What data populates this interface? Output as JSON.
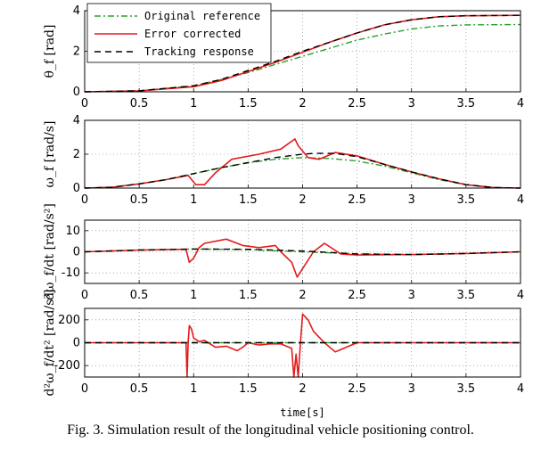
{
  "chart_data": [
    {
      "type": "line",
      "ylabel": "θ_f [rad]",
      "xlim": [
        0,
        4
      ],
      "ylim": [
        0,
        4
      ],
      "x_ticks": [
        "0",
        "0.5",
        "1",
        "1.5",
        "2",
        "2.5",
        "3",
        "3.5",
        "4"
      ],
      "y_ticks": [
        "0",
        "2",
        "4"
      ],
      "grid": true,
      "legend": {
        "position": "top-left",
        "entries": [
          "Original reference",
          "Error corrected",
          "Tracking response"
        ]
      },
      "series": [
        {
          "name": "Original reference",
          "color": "#2ca02c",
          "style": "dash-dot",
          "x": [
            0,
            0.5,
            1,
            1.25,
            1.5,
            1.75,
            2,
            2.25,
            2.5,
            2.75,
            3,
            3.25,
            3.5,
            4
          ],
          "y": [
            0,
            0.05,
            0.3,
            0.6,
            0.95,
            1.35,
            1.75,
            2.15,
            2.55,
            2.85,
            3.1,
            3.25,
            3.3,
            3.32
          ]
        },
        {
          "name": "Error corrected",
          "color": "#e41a1c",
          "style": "solid",
          "x": [
            0,
            0.5,
            1,
            1.25,
            1.5,
            1.75,
            2,
            2.25,
            2.5,
            2.75,
            3,
            3.25,
            3.5,
            4
          ],
          "y": [
            0,
            0.05,
            0.25,
            0.55,
            1.0,
            1.45,
            1.95,
            2.45,
            2.9,
            3.3,
            3.55,
            3.7,
            3.75,
            3.77
          ]
        },
        {
          "name": "Tracking response",
          "color": "#000000",
          "style": "dashed",
          "x": [
            0,
            0.5,
            1,
            1.25,
            1.5,
            1.75,
            2,
            2.25,
            2.5,
            2.75,
            3,
            3.25,
            3.5,
            4
          ],
          "y": [
            0,
            0.05,
            0.3,
            0.6,
            1.05,
            1.5,
            2.0,
            2.45,
            2.9,
            3.3,
            3.55,
            3.7,
            3.75,
            3.77
          ]
        }
      ]
    },
    {
      "type": "line",
      "ylabel": "ω_f [rad/s]",
      "xlim": [
        0,
        4
      ],
      "ylim": [
        0,
        4
      ],
      "x_ticks": [
        "0",
        "0.5",
        "1",
        "1.5",
        "2",
        "2.5",
        "3",
        "3.5",
        "4"
      ],
      "y_ticks": [
        "0",
        "2",
        "4"
      ],
      "grid": true,
      "series": [
        {
          "name": "Original reference",
          "color": "#2ca02c",
          "style": "dash-dot",
          "x": [
            0,
            0.25,
            0.5,
            0.75,
            1,
            1.25,
            1.5,
            1.75,
            2,
            2.25,
            2.5,
            2.75,
            3,
            3.25,
            3.5,
            3.75,
            4
          ],
          "y": [
            0,
            0.05,
            0.25,
            0.5,
            0.85,
            1.2,
            1.5,
            1.7,
            1.8,
            1.75,
            1.6,
            1.3,
            0.9,
            0.5,
            0.2,
            0.03,
            0
          ]
        },
        {
          "name": "Error corrected",
          "color": "#e41a1c",
          "style": "solid",
          "x": [
            0,
            0.25,
            0.5,
            0.75,
            0.95,
            1.02,
            1.1,
            1.2,
            1.35,
            1.6,
            1.8,
            1.93,
            1.96,
            2.05,
            2.15,
            2.3,
            2.5,
            2.75,
            3,
            3.25,
            3.5,
            3.75,
            4
          ],
          "y": [
            0,
            0.05,
            0.25,
            0.5,
            0.75,
            0.2,
            0.2,
            0.9,
            1.7,
            2.0,
            2.3,
            2.9,
            2.5,
            1.8,
            1.7,
            2.1,
            1.9,
            1.4,
            0.95,
            0.55,
            0.2,
            0.03,
            0
          ]
        },
        {
          "name": "Tracking response",
          "color": "#000000",
          "style": "dashed",
          "x": [
            0,
            0.25,
            0.5,
            0.75,
            1,
            1.25,
            1.5,
            1.75,
            2,
            2.1,
            2.3,
            2.5,
            2.75,
            3,
            3.25,
            3.5,
            3.75,
            4
          ],
          "y": [
            0,
            0.05,
            0.25,
            0.5,
            0.85,
            1.2,
            1.5,
            1.8,
            2.0,
            2.05,
            2.05,
            1.85,
            1.4,
            0.95,
            0.55,
            0.2,
            0.03,
            0
          ]
        }
      ]
    },
    {
      "type": "line",
      "ylabel": "dω_f/dt [rad/s²]",
      "xlim": [
        0,
        4
      ],
      "ylim": [
        -15,
        15
      ],
      "x_ticks": [
        "0",
        "0.5",
        "1",
        "1.5",
        "2",
        "2.5",
        "3",
        "3.5",
        "4"
      ],
      "y_ticks": [
        "-10",
        "0",
        "10"
      ],
      "grid": true,
      "series": [
        {
          "name": "Original reference",
          "color": "#2ca02c",
          "style": "dash-dot",
          "x": [
            0,
            0.5,
            1,
            1.5,
            2,
            2.5,
            3,
            3.5,
            4
          ],
          "y": [
            0,
            0.8,
            1.3,
            1.0,
            0,
            -1.0,
            -1.3,
            -0.8,
            0
          ]
        },
        {
          "name": "Error corrected",
          "color": "#e41a1c",
          "style": "solid",
          "x": [
            0,
            0.5,
            0.93,
            0.96,
            1.0,
            1.05,
            1.1,
            1.3,
            1.45,
            1.6,
            1.75,
            1.8,
            1.9,
            1.95,
            2.0,
            2.1,
            2.2,
            2.35,
            2.5,
            3,
            3.5,
            4
          ],
          "y": [
            0,
            0.8,
            1.2,
            -5,
            -3,
            2,
            4,
            6,
            3,
            2,
            3,
            0,
            -5,
            -12,
            -8,
            0,
            4,
            -1,
            -1.5,
            -1.3,
            -0.8,
            0
          ]
        },
        {
          "name": "Tracking response",
          "color": "#000000",
          "style": "dashed",
          "x": [
            0,
            0.5,
            1,
            1.5,
            2,
            2.5,
            3,
            3.5,
            4
          ],
          "y": [
            0,
            0.8,
            1.3,
            1.2,
            0.4,
            -1.0,
            -1.3,
            -0.8,
            0
          ]
        }
      ]
    },
    {
      "type": "line",
      "ylabel": "d²ω_f/dt² [rad/s³]",
      "xlim": [
        0,
        4
      ],
      "ylim": [
        -300,
        300
      ],
      "x_ticks": [
        "0",
        "0.5",
        "1",
        "1.5",
        "2",
        "2.5",
        "3",
        "3.5",
        "4"
      ],
      "y_ticks": [
        "-200",
        "0",
        "200"
      ],
      "xlabel": "time[s]",
      "grid": true,
      "series": [
        {
          "name": "Original reference",
          "color": "#2ca02c",
          "style": "dash-dot",
          "x": [
            0,
            2,
            4
          ],
          "y": [
            0,
            0,
            0
          ]
        },
        {
          "name": "Error corrected",
          "color": "#e41a1c",
          "style": "solid",
          "x": [
            0,
            0.93,
            0.94,
            0.95,
            0.96,
            0.98,
            1.0,
            1.05,
            1.1,
            1.2,
            1.3,
            1.4,
            1.45,
            1.5,
            1.6,
            1.7,
            1.8,
            1.9,
            1.92,
            1.94,
            1.96,
            1.98,
            2.0,
            2.05,
            2.1,
            2.2,
            2.3,
            2.4,
            2.5,
            3,
            4
          ],
          "y": [
            0,
            0,
            -300,
            0,
            150,
            120,
            40,
            10,
            20,
            -40,
            -30,
            -70,
            -40,
            0,
            -20,
            -10,
            -10,
            -50,
            -300,
            -100,
            -300,
            0,
            250,
            200,
            100,
            0,
            -80,
            -40,
            0,
            0,
            0
          ]
        },
        {
          "name": "Tracking response",
          "color": "#000000",
          "style": "dashed",
          "x": [
            0,
            2,
            4
          ],
          "y": [
            0,
            0,
            0
          ]
        }
      ]
    }
  ],
  "caption": "Fig. 3.   Simulation result of the longitudinal vehicle positioning control."
}
